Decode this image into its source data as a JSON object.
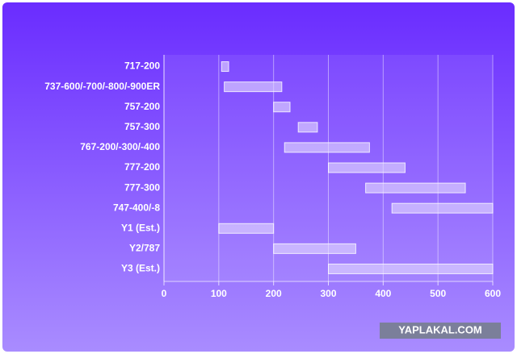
{
  "chart_data": {
    "type": "range-bar",
    "categories": [
      "717-200",
      "737-600/-700/-800/-900ER",
      "757-200",
      "757-300",
      "767-200/-300/-400",
      "777-200",
      "777-300",
      "747-400/-8",
      "Y1 (Est.)",
      "Y2/787",
      "Y3 (Est.)"
    ],
    "values": [
      [
        105,
        118
      ],
      [
        110,
        215
      ],
      [
        200,
        230
      ],
      [
        245,
        280
      ],
      [
        220,
        375
      ],
      [
        300,
        440
      ],
      [
        368,
        550
      ],
      [
        416,
        600
      ],
      [
        100,
        200
      ],
      [
        200,
        350
      ],
      [
        300,
        600
      ]
    ],
    "xlim": [
      0,
      600
    ],
    "xticks": [
      0,
      100,
      200,
      300,
      400,
      500,
      600
    ],
    "grid": true,
    "color": "#e6dcff",
    "watermark": "YAPLAKAL.COM"
  }
}
